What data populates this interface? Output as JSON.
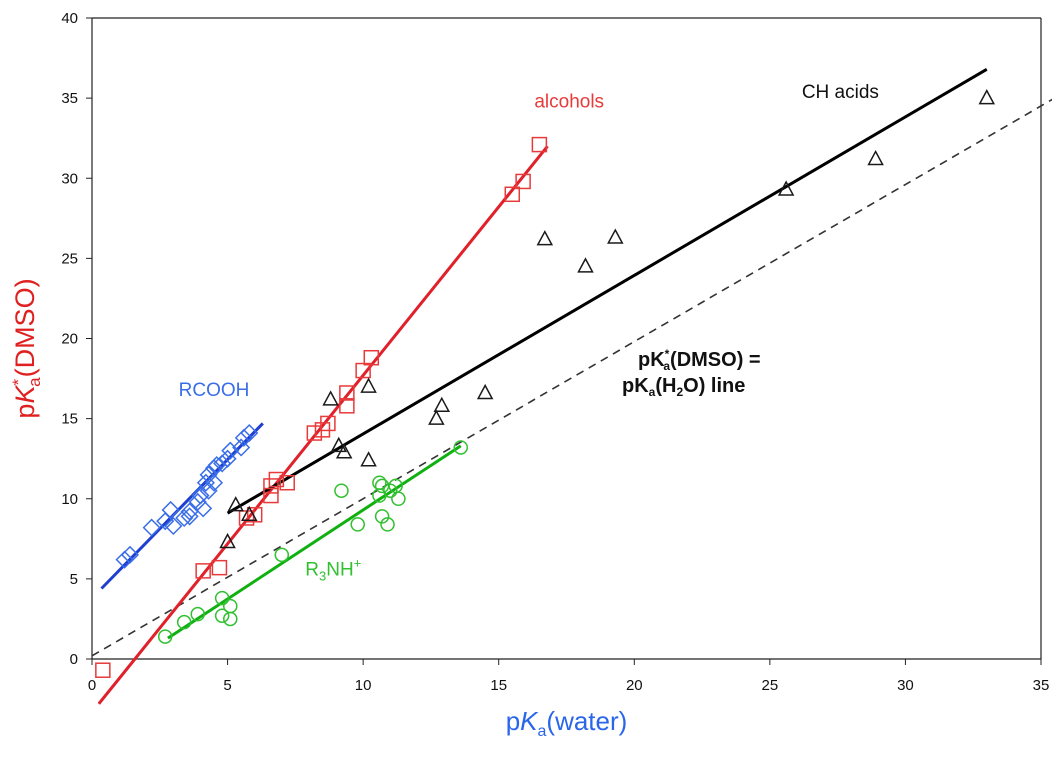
{
  "chart_data": {
    "type": "scatter",
    "xlabel": {
      "prefix": "p",
      "italic": "K",
      "sub": "a",
      "suffix": "(water)"
    },
    "ylabel": {
      "prefix": "p",
      "italic": "K",
      "sup": "*",
      "sub": "a",
      "suffix": "(DMSO)"
    },
    "xlim": [
      0,
      35
    ],
    "ylim": [
      0,
      40
    ],
    "x_ticks": [
      "0",
      "5",
      "10",
      "15",
      "20",
      "25",
      "30",
      "35"
    ],
    "y_ticks": [
      "0",
      "5",
      "10",
      "15",
      "20",
      "25",
      "30",
      "35",
      "40"
    ],
    "grid": false,
    "reference_line": {
      "style": "dashed",
      "color": "#333333",
      "x": [
        0,
        35.5
      ],
      "y": [
        0.2,
        35.0
      ],
      "label_lines": [
        "pK*a(DMSO) =",
        "pKa(H2O) line"
      ],
      "label_parts": {
        "line1": {
          "prefix": "pK",
          "sup": "*",
          "sub": "a",
          "suffix": "(DMSO) ="
        },
        "line2": {
          "prefix": "pK",
          "sub": "a",
          "mid": "(H",
          "sub2": "2",
          "suffix": "O) line"
        }
      }
    },
    "series": [
      {
        "name": "RCOOH",
        "marker": "diamond",
        "color": "#3a6ee8",
        "line_color": "#1f3fd0",
        "label": {
          "text": "RCOOH",
          "x": 4.5,
          "y": 16.4
        },
        "fit": {
          "x": [
            0.35,
            6.3
          ],
          "y": [
            4.4,
            14.7
          ]
        },
        "points": [
          [
            1.2,
            6.2
          ],
          [
            1.4,
            6.5
          ],
          [
            2.2,
            8.2
          ],
          [
            2.7,
            8.6
          ],
          [
            2.9,
            9.3
          ],
          [
            3.0,
            8.3
          ],
          [
            3.4,
            8.8
          ],
          [
            3.6,
            9.2
          ],
          [
            3.6,
            8.9
          ],
          [
            3.9,
            9.8
          ],
          [
            4.0,
            10.2
          ],
          [
            4.1,
            9.4
          ],
          [
            4.2,
            11.0
          ],
          [
            4.3,
            10.5
          ],
          [
            4.3,
            11.5
          ],
          [
            4.5,
            11.0
          ],
          [
            4.5,
            11.9
          ],
          [
            4.6,
            12.1
          ],
          [
            4.8,
            12.2
          ],
          [
            5.0,
            12.5
          ],
          [
            5.1,
            13.0
          ],
          [
            5.5,
            13.2
          ],
          [
            5.6,
            13.8
          ],
          [
            5.8,
            14.1
          ]
        ]
      },
      {
        "name": "alcohols",
        "marker": "square",
        "color": "#e83a3a",
        "line_color": "#e0202a",
        "label": {
          "text": "alcohols",
          "x": 17.6,
          "y": 34.4
        },
        "fit": {
          "x": [
            0.25,
            16.8
          ],
          "y": [
            -2.8,
            32.0
          ]
        },
        "points": [
          [
            0.4,
            -0.7
          ],
          [
            4.1,
            5.5
          ],
          [
            4.7,
            5.7
          ],
          [
            5.7,
            8.8
          ],
          [
            6.0,
            9.0
          ],
          [
            6.6,
            10.2
          ],
          [
            6.6,
            10.8
          ],
          [
            6.8,
            11.2
          ],
          [
            7.2,
            11.0
          ],
          [
            8.2,
            14.1
          ],
          [
            8.5,
            14.3
          ],
          [
            8.7,
            14.7
          ],
          [
            9.4,
            15.8
          ],
          [
            9.4,
            16.6
          ],
          [
            10.0,
            18.0
          ],
          [
            10.3,
            18.8
          ],
          [
            15.5,
            29.0
          ],
          [
            15.9,
            29.8
          ],
          [
            16.5,
            32.1
          ]
        ]
      },
      {
        "name": "CH acids",
        "marker": "triangle",
        "color": "#1a1a1a",
        "line_color": "#000000",
        "label": {
          "text": "CH acids",
          "x": 27.6,
          "y": 35.0
        },
        "fit": {
          "x": [
            5.0,
            33.0
          ],
          "y": [
            9.1,
            36.8
          ]
        },
        "points": [
          [
            5.0,
            7.3
          ],
          [
            5.3,
            9.6
          ],
          [
            5.8,
            9.0
          ],
          [
            8.8,
            16.2
          ],
          [
            9.1,
            13.3
          ],
          [
            9.3,
            12.9
          ],
          [
            10.2,
            17.0
          ],
          [
            10.2,
            12.4
          ],
          [
            12.7,
            15.0
          ],
          [
            12.9,
            15.8
          ],
          [
            14.5,
            16.6
          ],
          [
            16.7,
            26.2
          ],
          [
            18.2,
            24.5
          ],
          [
            19.3,
            26.3
          ],
          [
            25.6,
            29.3
          ],
          [
            28.9,
            31.2
          ],
          [
            33.0,
            35.0
          ]
        ]
      },
      {
        "name": "R3NH+",
        "marker": "circle",
        "color": "#30c030",
        "line_color": "#10b010",
        "label": {
          "text": "R",
          "sub": "3",
          "text2": "NH",
          "sup": "+",
          "x": 8.9,
          "y": 5.2
        },
        "fit": {
          "x": [
            2.8,
            13.6
          ],
          "y": [
            1.3,
            13.3
          ]
        },
        "points": [
          [
            2.7,
            1.4
          ],
          [
            3.4,
            2.3
          ],
          [
            3.9,
            2.8
          ],
          [
            4.8,
            3.8
          ],
          [
            4.8,
            2.7
          ],
          [
            5.1,
            3.3
          ],
          [
            5.1,
            2.5
          ],
          [
            7.0,
            6.5
          ],
          [
            9.2,
            10.5
          ],
          [
            9.8,
            8.4
          ],
          [
            10.6,
            11.0
          ],
          [
            10.6,
            10.2
          ],
          [
            10.7,
            10.8
          ],
          [
            10.7,
            8.9
          ],
          [
            10.9,
            8.4
          ],
          [
            11.0,
            10.5
          ],
          [
            11.2,
            10.8
          ],
          [
            11.3,
            10.0
          ],
          [
            13.6,
            13.2
          ]
        ]
      }
    ]
  }
}
